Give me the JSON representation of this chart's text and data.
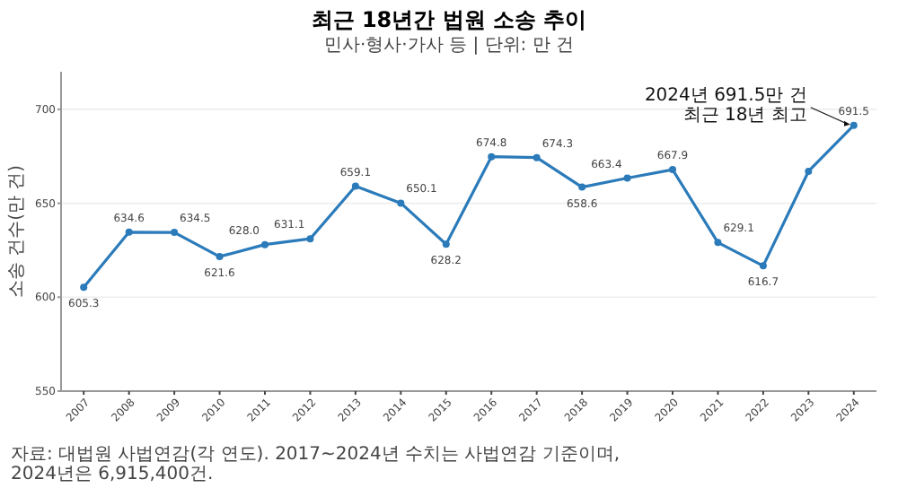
{
  "chart_data": {
    "type": "line",
    "title": "최근 18년간 법원 소송 추이",
    "subtitle": "민사·형사·가사 등 | 단위: 만 건",
    "ylabel": "소송 건수(만 건)",
    "categories": [
      "2007",
      "2008",
      "2009",
      "2010",
      "2011",
      "2012",
      "2013",
      "2014",
      "2015",
      "2016",
      "2017",
      "2018",
      "2019",
      "2020",
      "2021",
      "2022",
      "2023",
      "2024"
    ],
    "series": [
      {
        "color": "#2b7bba",
        "values": [
          605.3,
          634.6,
          634.5,
          621.6,
          628.0,
          631.1,
          659.1,
          650.1,
          628.2,
          674.8,
          674.3,
          658.6,
          663.4,
          667.9,
          629.1,
          616.7,
          667,
          691.5
        ],
        "value_labels": [
          "605.3",
          "634.6",
          "634.5",
          "621.6",
          "628.0",
          "631.1",
          "659.1",
          "650.1",
          "628.2",
          "674.8",
          "674.3",
          "658.6",
          "663.4",
          "667.9",
          "629.1",
          "616.7",
          null,
          "691.5"
        ]
      }
    ],
    "ylim": [
      550,
      720
    ],
    "yticks": [
      550,
      600,
      650,
      700
    ],
    "grid": "y",
    "marker": "circle",
    "line_style": "solid",
    "annotations": [
      {
        "text": "2024년 691.5만 건\n최근 18년 최고",
        "x": "2024",
        "y": 691.5
      },
      "자료: 대법원 사법연감(각 연도). 2017~2024년 수치는 사법연감 기준이며, 2024년은 6,915,400건."
    ]
  }
}
